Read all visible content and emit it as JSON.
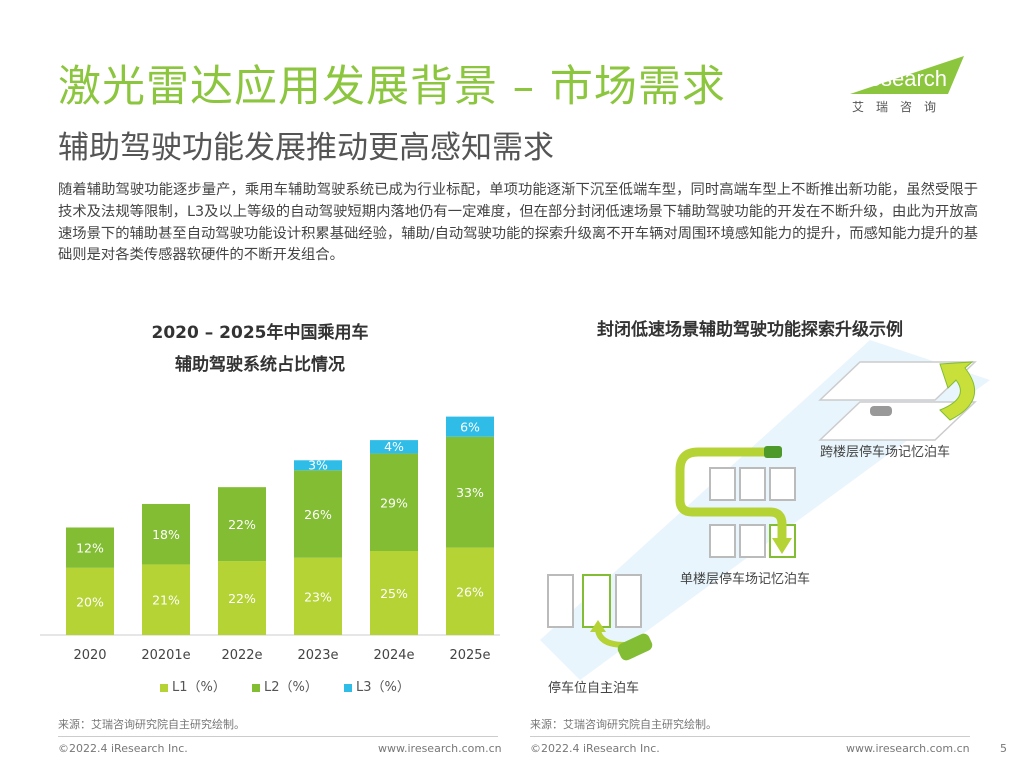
{
  "header": {
    "title": "激光雷达应用发展背景 – 市场需求",
    "subtitle": "辅助驾驶功能发展推动更高感知需求",
    "logo_text": "iResearch",
    "logo_cn": "艾瑞咨询"
  },
  "intro": "随着辅助驾驶功能逐步量产，乘用车辅助驾驶系统已成为行业标配，单项功能逐渐下沉至低端车型，同时高端车型上不断推出新功能，虽然受限于技术及法规等限制，L3及以上等级的自动驾驶短期内落地仍有一定难度，但在部分封闭低速场景下辅助驾驶功能的开发在不断升级，由此为开放高速场景下的辅助甚至自动驾驶功能设计积累基础经验，辅助/自动驾驶功能的探索升级离不开车辆对周围环境感知能力的提升，而感知能力提升的基础则是对各类传感器软硬件的不断开发组合。",
  "chart_data": {
    "type": "bar",
    "stacked": true,
    "title_line1": "2020 – 2025年中国乘用车",
    "title_line2": "辅助驾驶系统占比情况",
    "categories": [
      "2020",
      "20201e",
      "2022e",
      "2023e",
      "2024e",
      "2025e"
    ],
    "series": [
      {
        "name": "L1（%）",
        "color": "#b5d334",
        "values": [
          20,
          21,
          22,
          23,
          25,
          26
        ],
        "labels": [
          "20%",
          "21%",
          "22%",
          "23%",
          "25%",
          "26%"
        ]
      },
      {
        "name": "L2（%）",
        "color": "#82bd33",
        "values": [
          12,
          18,
          22,
          26,
          29,
          33
        ],
        "labels": [
          "12%",
          "18%",
          "22%",
          "26%",
          "29%",
          "33%"
        ]
      },
      {
        "name": "L3（%）",
        "color": "#2fbde8",
        "values": [
          0,
          0,
          0,
          3,
          4,
          6
        ],
        "labels": [
          "",
          "",
          "",
          "3%",
          "4%",
          "6%"
        ]
      }
    ],
    "grid": false
  },
  "diagram": {
    "title": "封闭低速场景辅助驾驶功能探索升级示例",
    "label_multi": "跨楼层停车场记忆泊车",
    "label_single": "单楼层停车场记忆泊车",
    "label_self": "停车位自主泊车"
  },
  "footer": {
    "source_left": "来源：艾瑞咨询研究院自主研究绘制。",
    "source_right": "来源：艾瑞咨询研究院自主研究绘制。",
    "copyright_left": "©2022.4 iResearch Inc.",
    "url_left": "www.iresearch.com.cn",
    "copyright_right": "©2022.4 iResearch Inc.",
    "url_right": "www.iresearch.com.cn",
    "page_number": "5"
  }
}
